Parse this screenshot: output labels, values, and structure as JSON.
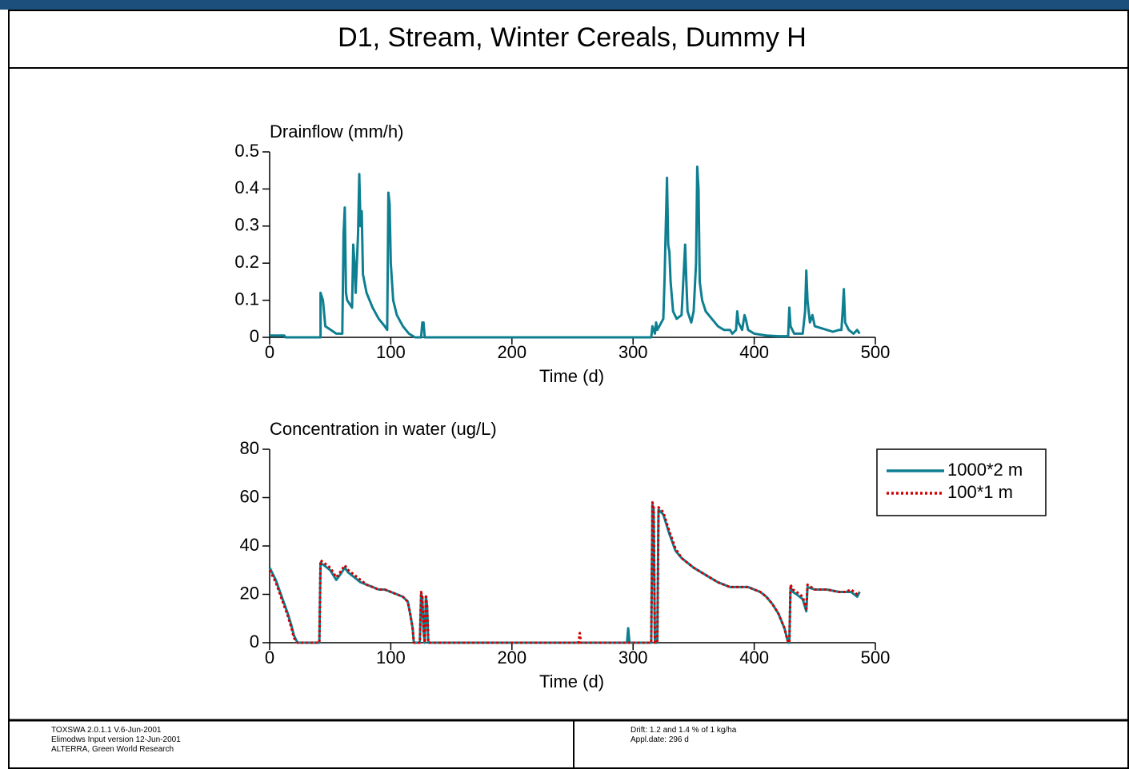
{
  "title": "D1, Stream, Winter Cereals, Dummy H",
  "footer": {
    "left": [
      "TOXSWA 2.0.1.1 V.6-Jun-2001",
      "Elimodws Input version 12-Jun-2001",
      "ALTERRA, Green World Research"
    ],
    "middle": [
      "Drift: 1.2 and 1.4 % of 1 kg/ha",
      "Appl.date: 296 d"
    ]
  },
  "chart_data": [
    {
      "type": "line",
      "title": "Drainflow (mm/h)",
      "x_label": "Time (d)",
      "xlim": [
        0,
        500
      ],
      "xticks": [
        0,
        100,
        200,
        300,
        400,
        500
      ],
      "ylim": [
        0,
        0.5
      ],
      "yticks": [
        0,
        0.1,
        0.2,
        0.3,
        0.4,
        0.5
      ],
      "series": [
        {
          "color": "#0e7f91",
          "linestyle": "solid",
          "x": [
            0,
            12,
            13,
            42,
            42,
            44,
            46,
            55,
            60,
            61,
            62,
            63,
            64,
            68,
            69,
            70,
            71,
            73,
            74,
            75,
            76,
            77,
            80,
            85,
            90,
            95,
            97,
            98,
            99,
            100,
            102,
            105,
            110,
            115,
            120,
            125,
            126,
            127,
            128,
            200,
            315,
            316,
            318,
            319,
            320,
            325,
            326,
            327,
            328,
            329,
            330,
            331,
            333,
            336,
            340,
            343,
            344,
            345,
            348,
            350,
            352,
            353,
            354,
            355,
            357,
            360,
            365,
            370,
            375,
            380,
            382,
            385,
            386,
            387,
            390,
            392,
            393,
            395,
            400,
            410,
            420,
            428,
            429,
            430,
            433,
            440,
            442,
            443,
            444,
            446,
            448,
            450,
            455,
            460,
            465,
            470,
            472,
            473,
            474,
            475,
            478,
            482,
            485,
            487
          ],
          "values": [
            0.005,
            0.005,
            0,
            0,
            0.12,
            0.1,
            0.03,
            0.01,
            0.01,
            0.28,
            0.35,
            0.12,
            0.1,
            0.08,
            0.25,
            0.2,
            0.12,
            0.28,
            0.44,
            0.3,
            0.34,
            0.17,
            0.12,
            0.08,
            0.05,
            0.03,
            0.02,
            0.39,
            0.36,
            0.2,
            0.1,
            0.06,
            0.03,
            0.01,
            0,
            0,
            0.04,
            0.04,
            0,
            0,
            0,
            0.03,
            0.01,
            0.04,
            0.02,
            0.05,
            0.16,
            0.3,
            0.43,
            0.25,
            0.23,
            0.15,
            0.07,
            0.05,
            0.06,
            0.25,
            0.15,
            0.07,
            0.04,
            0.07,
            0.2,
            0.46,
            0.4,
            0.15,
            0.1,
            0.07,
            0.05,
            0.03,
            0.02,
            0.02,
            0.01,
            0.02,
            0.07,
            0.04,
            0.02,
            0.06,
            0.05,
            0.02,
            0.01,
            0.005,
            0.003,
            0.003,
            0.08,
            0.03,
            0.01,
            0.01,
            0.07,
            0.18,
            0.1,
            0.04,
            0.06,
            0.03,
            0.025,
            0.02,
            0.015,
            0.02,
            0.02,
            0.07,
            0.13,
            0.04,
            0.02,
            0.01,
            0.02,
            0.01
          ]
        }
      ]
    },
    {
      "type": "line",
      "title": "Concentration in water (ug/L)",
      "x_label": "Time (d)",
      "xlim": [
        0,
        500
      ],
      "xticks": [
        0,
        100,
        200,
        300,
        400,
        500
      ],
      "ylim": [
        0,
        80
      ],
      "yticks": [
        0,
        20,
        40,
        60,
        80
      ],
      "legend": "right",
      "series": [
        {
          "name": "1000*2 m",
          "color": "#0e7f91",
          "linestyle": "solid",
          "x": [
            0,
            5,
            10,
            15,
            18,
            20,
            23,
            41,
            42,
            45,
            50,
            55,
            58,
            62,
            65,
            70,
            75,
            80,
            85,
            90,
            95,
            100,
            105,
            110,
            114,
            116,
            118,
            119,
            124,
            125,
            126,
            127,
            128,
            129,
            130,
            131,
            295,
            296,
            297,
            315,
            316,
            317,
            318,
            320,
            321,
            325,
            330,
            335,
            340,
            350,
            360,
            370,
            380,
            390,
            395,
            400,
            405,
            410,
            415,
            420,
            425,
            428,
            429,
            430,
            432,
            435,
            440,
            443,
            444,
            450,
            460,
            470,
            475,
            480,
            485,
            487
          ],
          "values": [
            31,
            26,
            19,
            12,
            7,
            3,
            0,
            0,
            33,
            32,
            30,
            26,
            28,
            31,
            29,
            27,
            25,
            24,
            23,
            22,
            22,
            21,
            20,
            19,
            17,
            12,
            6,
            0,
            0,
            20,
            19,
            5,
            0,
            19,
            15,
            0,
            0,
            6,
            0,
            0,
            57,
            55,
            0,
            0,
            55,
            53,
            45,
            38,
            35,
            31,
            28,
            25,
            23,
            23,
            23,
            22,
            21,
            19,
            16,
            12,
            6,
            0,
            0,
            23,
            21,
            20,
            18,
            13,
            23,
            22,
            22,
            21,
            21,
            21,
            19,
            21
          ]
        },
        {
          "name": "100*1 m",
          "color": "#d40000",
          "linestyle": "dotted",
          "x": [
            0,
            5,
            10,
            15,
            18,
            20,
            23,
            41,
            42,
            45,
            50,
            55,
            58,
            62,
            65,
            70,
            75,
            80,
            85,
            90,
            95,
            100,
            105,
            110,
            114,
            116,
            118,
            119,
            124,
            125,
            126,
            127,
            128,
            129,
            130,
            131,
            255,
            256,
            257,
            315,
            316,
            317,
            318,
            320,
            321,
            325,
            330,
            335,
            340,
            350,
            360,
            370,
            380,
            390,
            395,
            400,
            405,
            410,
            415,
            420,
            425,
            428,
            429,
            430,
            432,
            435,
            440,
            443,
            444,
            450,
            460,
            470,
            475,
            480,
            485,
            487
          ],
          "values": [
            30,
            25,
            18,
            11,
            6,
            2,
            0,
            0,
            34,
            33,
            31,
            27,
            29,
            32,
            30,
            28,
            26,
            24,
            23,
            22,
            22,
            21,
            20,
            19,
            17,
            12,
            6,
            0,
            0,
            21,
            19,
            5,
            0,
            20,
            15,
            0,
            0,
            4,
            0,
            0,
            58,
            56,
            0,
            0,
            56,
            54,
            46,
            39,
            35,
            31,
            28,
            25,
            23,
            23,
            23,
            22,
            21,
            19,
            16,
            12,
            6,
            0,
            0,
            24,
            22,
            21,
            19,
            14,
            24,
            22,
            22,
            21,
            21,
            22,
            20,
            21
          ]
        }
      ]
    }
  ]
}
